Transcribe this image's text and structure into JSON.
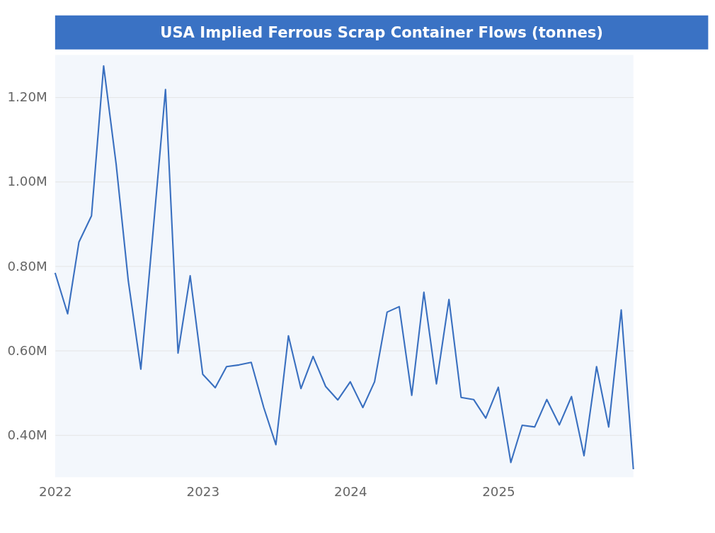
{
  "chart_data": {
    "type": "line",
    "title": "USA Implied Ferrous Scrap Container Flows (tonnes)",
    "x": [
      "2022-01",
      "2022-02",
      "2022-03",
      "2022-04",
      "2022-05",
      "2022-06",
      "2022-07",
      "2022-08",
      "2022-09",
      "2022-10",
      "2022-11",
      "2022-12",
      "2023-01",
      "2023-02",
      "2023-03",
      "2023-04",
      "2023-05",
      "2023-06",
      "2023-07",
      "2023-08",
      "2023-09",
      "2023-10",
      "2023-11",
      "2023-12",
      "2024-01",
      "2024-02",
      "2024-03",
      "2024-04",
      "2024-05",
      "2024-06",
      "2024-07",
      "2024-08",
      "2024-09",
      "2024-10",
      "2024-11",
      "2024-12",
      "2025-01",
      "2025-02",
      "2025-03",
      "2025-04",
      "2025-05",
      "2025-06",
      "2025-07",
      "2025-08",
      "2025-09",
      "2025-10",
      "2025-11",
      "2025-12"
    ],
    "series": [
      {
        "color": "#3a70c0",
        "values": [
          784000,
          687000,
          857000,
          919000,
          1274000,
          1041000,
          765000,
          556000,
          890000,
          1218000,
          594000,
          777000,
          544000,
          512000,
          562000,
          566000,
          572000,
          465000,
          377000,
          635000,
          510000,
          586000,
          515000,
          483000,
          526000,
          465000,
          526000,
          691000,
          704000,
          494000,
          738000,
          521000,
          721000,
          489000,
          484000,
          440000,
          513000,
          335000,
          423000,
          419000,
          484000,
          424000,
          491000,
          351000,
          562000,
          419000,
          696000,
          319000
        ]
      }
    ],
    "xlim": [
      "2022-01",
      "2025-12"
    ],
    "xticks": [
      "2022",
      "2023",
      "2024",
      "2025"
    ],
    "ylim": [
      300000,
      1300000
    ],
    "yticks": [
      {
        "value": 400000,
        "label": "0.40M"
      },
      {
        "value": 600000,
        "label": "0.60M"
      },
      {
        "value": 800000,
        "label": "0.80M"
      },
      {
        "value": 1000000,
        "label": "1.00M"
      },
      {
        "value": 1200000,
        "label": "1.20M"
      }
    ],
    "grid": "y",
    "legend": false,
    "marker": "none",
    "line_style": "solid"
  }
}
